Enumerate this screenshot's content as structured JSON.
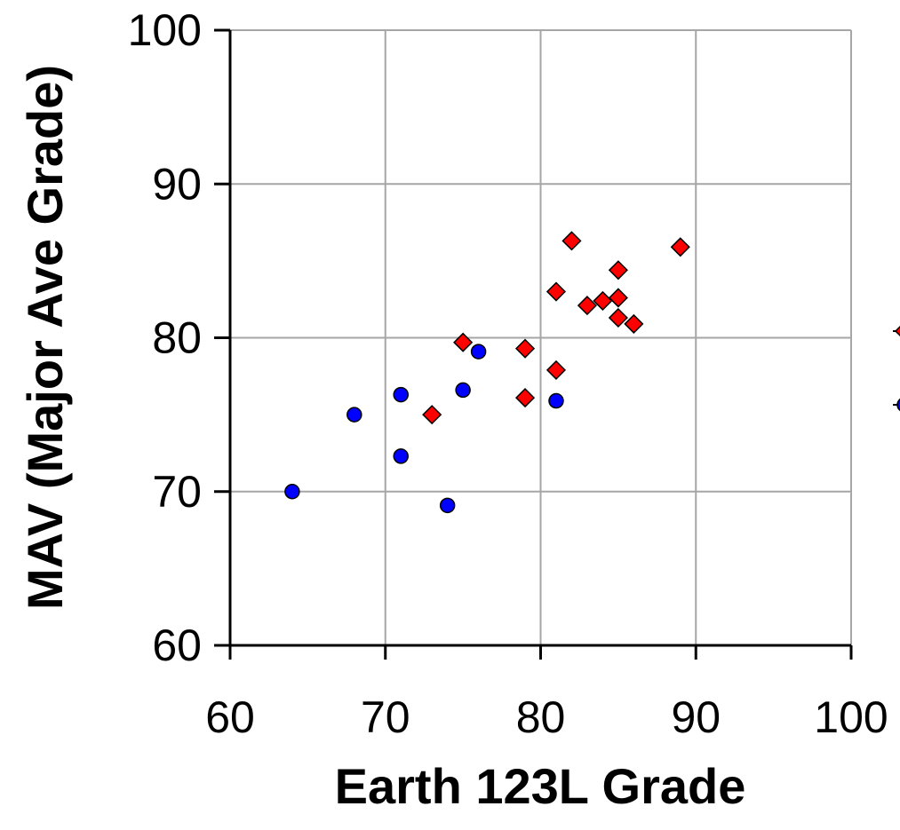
{
  "chart_data": {
    "type": "scatter",
    "xlabel": "Earth 123L Grade",
    "ylabel": "MAV (Major Ave Grade)",
    "xlim": [
      60,
      100
    ],
    "ylim": [
      60,
      100
    ],
    "x_ticks": [
      60,
      70,
      80,
      90,
      100
    ],
    "y_ticks": [
      60,
      70,
      80,
      90,
      100
    ],
    "grid": true,
    "legend": "right, partially cut off",
    "series": [
      {
        "marker": "diamond",
        "color": "#ff0000",
        "points": [
          {
            "x": 73,
            "y": 75.0
          },
          {
            "x": 75,
            "y": 79.7
          },
          {
            "x": 79,
            "y": 79.3
          },
          {
            "x": 79,
            "y": 76.1
          },
          {
            "x": 81,
            "y": 83.0
          },
          {
            "x": 81,
            "y": 77.9
          },
          {
            "x": 82,
            "y": 86.3
          },
          {
            "x": 83,
            "y": 82.1
          },
          {
            "x": 84,
            "y": 82.4
          },
          {
            "x": 85,
            "y": 84.4
          },
          {
            "x": 85,
            "y": 82.6
          },
          {
            "x": 85,
            "y": 81.3
          },
          {
            "x": 86,
            "y": 80.9
          },
          {
            "x": 89,
            "y": 85.9
          }
        ]
      },
      {
        "marker": "circle",
        "color": "#0000ff",
        "points": [
          {
            "x": 64,
            "y": 70.0
          },
          {
            "x": 68,
            "y": 75.0
          },
          {
            "x": 71,
            "y": 76.3
          },
          {
            "x": 71,
            "y": 72.3
          },
          {
            "x": 74,
            "y": 69.1
          },
          {
            "x": 75,
            "y": 76.6
          },
          {
            "x": 76,
            "y": 79.1
          },
          {
            "x": 81,
            "y": 75.9
          }
        ]
      }
    ]
  }
}
